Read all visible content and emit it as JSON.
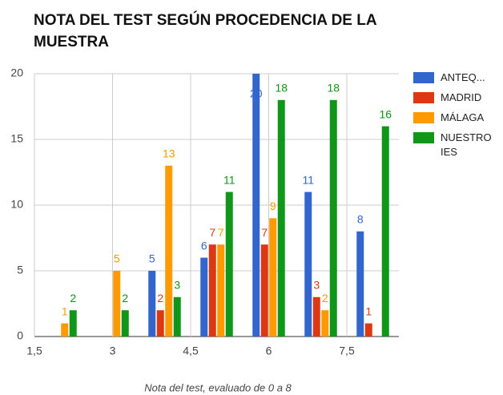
{
  "chart_data": {
    "type": "bar",
    "title": "NOTA DEL TEST SEGÚN PROCEDENCIA DE LA MUESTRA",
    "x_label": "Nota del test, evaluado de 0 a 8",
    "x": [
      2,
      3,
      4,
      5,
      6,
      7,
      8
    ],
    "series": [
      {
        "name": "ANTEQ...",
        "color": "#3366cc",
        "values": [
          null,
          null,
          5,
          6,
          20,
          11,
          8
        ]
      },
      {
        "name": "MADRID",
        "color": "#dc3912",
        "values": [
          null,
          null,
          2,
          7,
          7,
          3,
          1
        ]
      },
      {
        "name": "MÁLAGA",
        "color": "#ff9900",
        "values": [
          1,
          5,
          13,
          7,
          9,
          2,
          null
        ]
      },
      {
        "name": "NUESTRO IES",
        "color": "#109618",
        "values": [
          2,
          2,
          3,
          11,
          18,
          18,
          16
        ]
      }
    ],
    "xlim": [
      1.5,
      8.5
    ],
    "xticks": [
      {
        "value": 1.5,
        "label": "1,5"
      },
      3,
      {
        "value": 4.5,
        "label": "4,5"
      },
      6,
      {
        "value": 7.5,
        "label": "7,5"
      }
    ],
    "ylim": [
      0,
      20
    ],
    "yticks": [
      0,
      5,
      10,
      15,
      20
    ],
    "grid": true,
    "legend": "right"
  }
}
